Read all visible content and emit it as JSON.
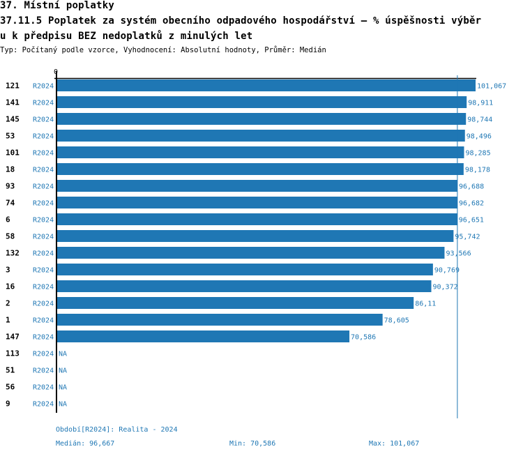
{
  "header": {
    "title_line1": "37. Místní poplatky",
    "title_line2": "37.11.5 Poplatek za systém obecního odpadového hospodářství  – % úspěšnosti výběr",
    "title_line3": "u k předpisu BEZ nedoplatků z minulých let",
    "subtitle": "Typ: Počítaný podle vzorce, Vyhodnocení: Absolutní hodnoty, Průměr: Medián"
  },
  "colors": {
    "bar": "#1f77b4",
    "label": "#1f77b4",
    "axis": "#000000",
    "median_line": "#1f77b4"
  },
  "chart_data": {
    "type": "bar",
    "orientation": "horizontal",
    "x_tick_label": "0",
    "xlim": [
      0,
      101.067
    ],
    "median": 96.667,
    "categories": [
      "121",
      "141",
      "145",
      "53",
      "101",
      "18",
      "93",
      "74",
      "6",
      "58",
      "132",
      "3",
      "16",
      "2",
      "1",
      "147",
      "113",
      "51",
      "56",
      "9"
    ],
    "series_labels": [
      "R2024",
      "R2024",
      "R2024",
      "R2024",
      "R2024",
      "R2024",
      "R2024",
      "R2024",
      "R2024",
      "R2024",
      "R2024",
      "R2024",
      "R2024",
      "R2024",
      "R2024",
      "R2024",
      "R2024",
      "R2024",
      "R2024",
      "R2024"
    ],
    "values": [
      101.067,
      98.911,
      98.744,
      98.496,
      98.285,
      98.178,
      96.688,
      96.682,
      96.651,
      95.742,
      93.566,
      90.769,
      90.372,
      86.11,
      78.605,
      70.586,
      null,
      null,
      null,
      null
    ],
    "value_labels": [
      "101,067",
      "98,911",
      "98,744",
      "98,496",
      "98,285",
      "98,178",
      "96,688",
      "96,682",
      "96,651",
      "95,742",
      "93,566",
      "90,769",
      "90,372",
      "86,11",
      "78,605",
      "70,586",
      "NA",
      "NA",
      "NA",
      "NA"
    ]
  },
  "footer": {
    "period": "Období[R2024]: Realita - 2024",
    "median": "Medián: 96,667",
    "min": "Min: 70,586",
    "max": "Max: 101,067"
  }
}
